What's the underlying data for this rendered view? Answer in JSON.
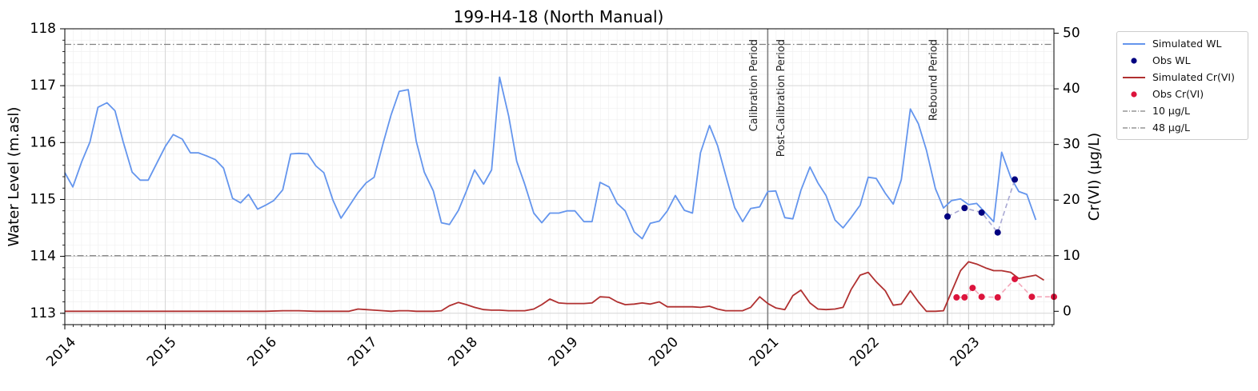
{
  "chart_data": {
    "type": "line",
    "title": "199-H4-18 (North Manual)",
    "ylabel_left": "Water Level (m.asl)",
    "ylabel_right": "Cr(VI) (µg/L)",
    "xlim": [
      2014.0,
      2023.85
    ],
    "ylim_left": [
      112.8,
      118.0
    ],
    "ylim_right": [
      -2.4,
      50.8
    ],
    "x_ticks": [
      "2014",
      "2015",
      "2016",
      "2017",
      "2018",
      "2019",
      "2020",
      "2021",
      "2022",
      "2023"
    ],
    "y_ticks_left": [
      "113",
      "114",
      "115",
      "116",
      "117",
      "118"
    ],
    "y_ticks_right": [
      "0",
      "10",
      "20",
      "30",
      "40",
      "50"
    ],
    "grid": true,
    "legend_position": "outside-top-right",
    "colors": {
      "sim_wl": "#6495ed",
      "obs_wl": "#000080",
      "sim_cr": "#b03030",
      "obs_cr": "#dc143c",
      "reference": "#808080",
      "period_line": "#808080"
    },
    "periods": [
      {
        "label": "Calibration Period",
        "x": 2021.0,
        "side": "left"
      },
      {
        "label": "Post-Calibration Period",
        "x": 2021.0,
        "side": "right"
      },
      {
        "label": "Rebound Period",
        "x": 2022.79,
        "side": "left"
      }
    ],
    "period_boundaries": [
      2021.0,
      2022.79
    ],
    "references": [
      {
        "name": "10 µg/L",
        "value": 10
      },
      {
        "name": "48 µg/L",
        "value": 48
      }
    ],
    "series": [
      {
        "name": "Simulated WL",
        "axis": "left",
        "style": "line",
        "x": [
          2014.0,
          2014.08,
          2014.17,
          2014.25,
          2014.33,
          2014.42,
          2014.5,
          2014.58,
          2014.67,
          2014.75,
          2014.83,
          2014.92,
          2015.0,
          2015.08,
          2015.17,
          2015.25,
          2015.33,
          2015.42,
          2015.5,
          2015.58,
          2015.67,
          2015.75,
          2015.83,
          2015.92,
          2016.0,
          2016.08,
          2016.17,
          2016.25,
          2016.33,
          2016.42,
          2016.5,
          2016.58,
          2016.67,
          2016.75,
          2016.83,
          2016.92,
          2017.0,
          2017.08,
          2017.17,
          2017.25,
          2017.33,
          2017.42,
          2017.5,
          2017.58,
          2017.67,
          2017.75,
          2017.83,
          2017.92,
          2018.0,
          2018.08,
          2018.17,
          2018.25,
          2018.33,
          2018.42,
          2018.5,
          2018.58,
          2018.67,
          2018.75,
          2018.83,
          2018.92,
          2019.0,
          2019.08,
          2019.17,
          2019.25,
          2019.33,
          2019.42,
          2019.5,
          2019.58,
          2019.67,
          2019.75,
          2019.83,
          2019.92,
          2020.0,
          2020.08,
          2020.17,
          2020.25,
          2020.33,
          2020.42,
          2020.5,
          2020.58,
          2020.67,
          2020.75,
          2020.83,
          2020.92,
          2021.0,
          2021.08,
          2021.17,
          2021.25,
          2021.33,
          2021.42,
          2021.5,
          2021.58,
          2021.67,
          2021.75,
          2021.83,
          2021.92,
          2022.0,
          2022.08,
          2022.17,
          2022.25,
          2022.33,
          2022.42,
          2022.5,
          2022.58,
          2022.67,
          2022.75,
          2022.83,
          2022.92,
          2023.0,
          2023.08,
          2023.17,
          2023.25,
          2023.33,
          2023.42,
          2023.5,
          2023.58,
          2023.67
        ],
        "y": [
          115.47,
          115.22,
          115.67,
          116.01,
          116.62,
          116.7,
          116.56,
          116.02,
          115.48,
          115.34,
          115.34,
          115.65,
          115.93,
          116.14,
          116.06,
          115.82,
          115.82,
          115.76,
          115.7,
          115.55,
          115.02,
          114.94,
          115.09,
          114.83,
          114.9,
          114.98,
          115.17,
          115.8,
          115.81,
          115.8,
          115.59,
          115.47,
          114.99,
          114.67,
          114.88,
          115.12,
          115.29,
          115.39,
          115.99,
          116.49,
          116.9,
          116.93,
          116.02,
          115.48,
          115.15,
          114.59,
          114.56,
          114.81,
          115.15,
          115.52,
          115.27,
          115.52,
          117.15,
          116.47,
          115.67,
          115.27,
          114.76,
          114.59,
          114.76,
          114.76,
          114.8,
          114.8,
          114.61,
          114.61,
          115.3,
          115.22,
          114.93,
          114.8,
          114.43,
          114.31,
          114.58,
          114.62,
          114.8,
          115.07,
          114.81,
          114.76,
          115.82,
          116.3,
          115.95,
          115.43,
          114.86,
          114.61,
          114.84,
          114.87,
          115.14,
          115.15,
          114.68,
          114.66,
          115.16,
          115.57,
          115.29,
          115.07,
          114.64,
          114.5,
          114.68,
          114.9,
          115.39,
          115.37,
          115.11,
          114.92,
          115.35,
          116.59,
          116.33,
          115.87,
          115.19,
          114.85,
          114.98,
          115.01,
          114.91,
          114.93,
          114.76,
          114.61,
          115.83,
          115.39,
          115.14,
          115.09,
          114.64
        ]
      },
      {
        "name": "Obs WL",
        "axis": "left",
        "style": "points",
        "x": [
          2022.79,
          2022.96,
          2023.13,
          2023.29,
          2023.46
        ],
        "y": [
          114.7,
          114.85,
          114.77,
          114.42,
          115.35
        ]
      },
      {
        "name": "Simulated Cr(VI)",
        "axis": "right",
        "style": "line",
        "x": [
          2014.0,
          2014.17,
          2014.33,
          2014.5,
          2014.67,
          2014.83,
          2015.0,
          2015.17,
          2015.33,
          2015.5,
          2015.67,
          2015.83,
          2016.0,
          2016.17,
          2016.33,
          2016.5,
          2016.67,
          2016.83,
          2016.92,
          2017.0,
          2017.08,
          2017.17,
          2017.25,
          2017.33,
          2017.42,
          2017.5,
          2017.58,
          2017.67,
          2017.75,
          2017.83,
          2017.92,
          2018.0,
          2018.08,
          2018.17,
          2018.25,
          2018.33,
          2018.42,
          2018.5,
          2018.58,
          2018.67,
          2018.75,
          2018.83,
          2018.92,
          2019.0,
          2019.08,
          2019.17,
          2019.25,
          2019.33,
          2019.42,
          2019.5,
          2019.58,
          2019.67,
          2019.75,
          2019.83,
          2019.92,
          2020.0,
          2020.08,
          2020.17,
          2020.25,
          2020.33,
          2020.42,
          2020.5,
          2020.58,
          2020.67,
          2020.75,
          2020.83,
          2020.92,
          2021.0,
          2021.08,
          2021.17,
          2021.25,
          2021.33,
          2021.42,
          2021.5,
          2021.58,
          2021.67,
          2021.75,
          2021.83,
          2021.92,
          2022.0,
          2022.08,
          2022.17,
          2022.25,
          2022.33,
          2022.42,
          2022.5,
          2022.58,
          2022.67,
          2022.75,
          2022.83,
          2022.92,
          2023.0,
          2023.08,
          2023.17,
          2023.25,
          2023.33,
          2023.42,
          2023.5,
          2023.58,
          2023.67,
          2023.75
        ],
        "y": [
          0.0,
          0.0,
          0.0,
          0.0,
          0.0,
          0.0,
          0.0,
          0.0,
          0.0,
          0.0,
          0.0,
          0.0,
          0.0,
          0.1,
          0.1,
          0.0,
          0.0,
          0.0,
          0.4,
          0.3,
          0.2,
          0.1,
          0.0,
          0.1,
          0.1,
          0.0,
          0.0,
          0.0,
          0.1,
          1.0,
          1.6,
          1.2,
          0.7,
          0.3,
          0.2,
          0.2,
          0.1,
          0.1,
          0.1,
          0.4,
          1.2,
          2.2,
          1.5,
          1.4,
          1.4,
          1.4,
          1.5,
          2.6,
          2.5,
          1.7,
          1.2,
          1.3,
          1.5,
          1.3,
          1.7,
          0.8,
          0.8,
          0.8,
          0.8,
          0.7,
          0.9,
          0.4,
          0.1,
          0.1,
          0.1,
          0.7,
          2.6,
          1.4,
          0.6,
          0.3,
          2.8,
          3.8,
          1.5,
          0.4,
          0.3,
          0.4,
          0.7,
          3.9,
          6.5,
          7.0,
          5.3,
          3.7,
          1.1,
          1.3,
          3.7,
          1.7,
          0.0,
          0.0,
          0.1,
          3.5,
          7.3,
          8.9,
          8.5,
          7.8,
          7.3,
          7.3,
          7.0,
          5.9,
          6.2,
          6.5,
          5.6
        ]
      },
      {
        "name": "Obs Cr(VI)",
        "axis": "right",
        "style": "points",
        "x": [
          2022.88,
          2022.96,
          2023.04,
          2023.13,
          2023.29,
          2023.46,
          2023.63,
          2023.85
        ],
        "y": [
          2.5,
          2.5,
          4.2,
          2.6,
          2.5,
          5.8,
          2.6,
          2.6
        ]
      }
    ]
  },
  "legend": {
    "items": [
      {
        "label": "Simulated WL",
        "kind": "line",
        "color": "#6495ed"
      },
      {
        "label": "Obs WL",
        "kind": "dot",
        "color": "#000080"
      },
      {
        "label": "Simulated Cr(VI)",
        "kind": "line",
        "color": "#b03030"
      },
      {
        "label": "Obs Cr(VI)",
        "kind": "dot",
        "color": "#dc143c"
      },
      {
        "label": "10 µg/L",
        "kind": "dashdot",
        "color": "#808080"
      },
      {
        "label": "48 µg/L",
        "kind": "dashdot",
        "color": "#808080"
      }
    ]
  }
}
